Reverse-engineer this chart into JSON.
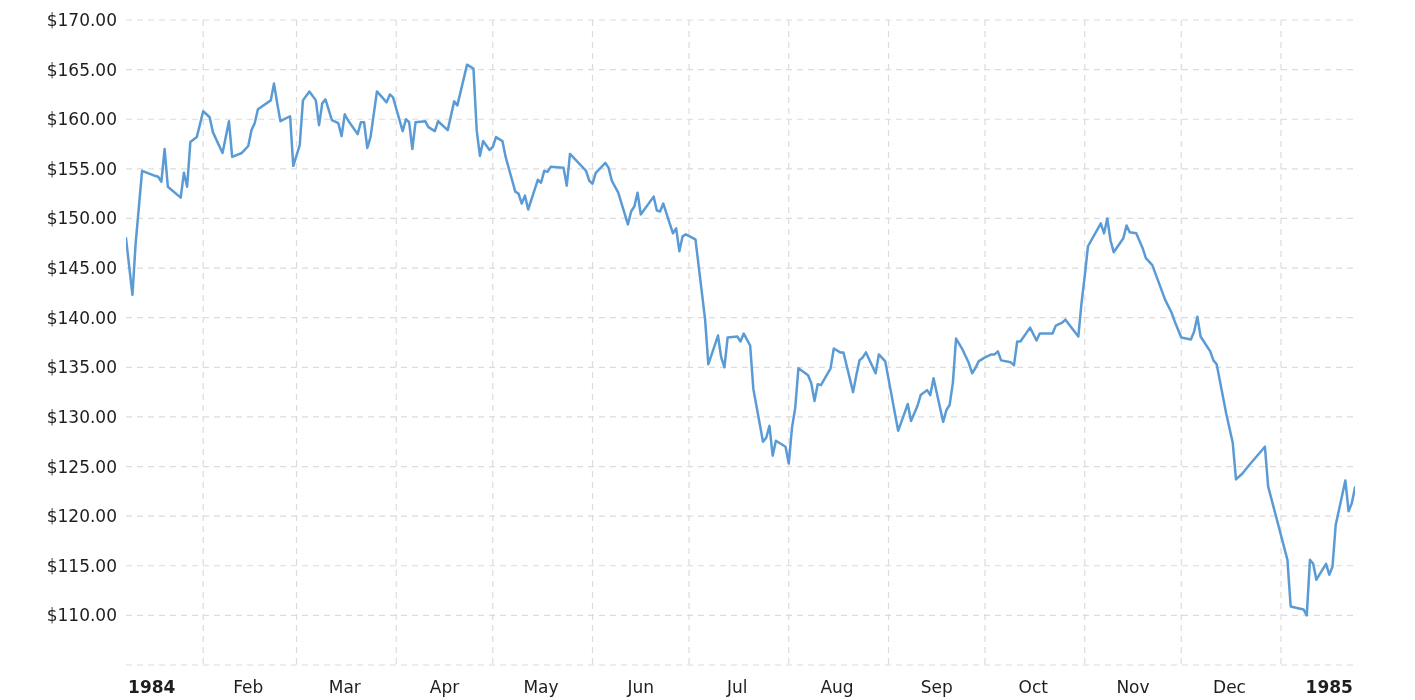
{
  "chart_data": {
    "type": "line",
    "color": "#5b9bd5",
    "x": [
      "1984-01-08",
      "1984-01-10",
      "1984-01-11",
      "1984-01-13",
      "1984-01-17",
      "1984-01-18",
      "1984-01-19",
      "1984-01-20",
      "1984-01-21",
      "1984-01-25",
      "1984-01-26",
      "1984-01-27",
      "1984-01-28",
      "1984-01-30",
      "1984-02-01",
      "1984-02-03",
      "1984-02-04",
      "1984-02-07",
      "1984-02-09",
      "1984-02-10",
      "1984-02-13",
      "1984-02-15",
      "1984-02-16",
      "1984-02-17",
      "1984-02-18",
      "1984-02-22",
      "1984-02-23",
      "1984-02-24",
      "1984-02-25",
      "1984-02-28",
      "1984-02-29",
      "1984-03-02",
      "1984-03-03",
      "1984-03-05",
      "1984-03-07",
      "1984-03-08",
      "1984-03-09",
      "1984-03-10",
      "1984-03-12",
      "1984-03-14",
      "1984-03-15",
      "1984-03-16",
      "1984-03-17",
      "1984-03-20",
      "1984-03-21",
      "1984-03-22",
      "1984-03-23",
      "1984-03-24",
      "1984-03-26",
      "1984-03-29",
      "1984-03-30",
      "1984-03-31",
      "1984-04-03",
      "1984-04-04",
      "1984-04-05",
      "1984-04-06",
      "1984-04-07",
      "1984-04-10",
      "1984-04-11",
      "1984-04-13",
      "1984-04-14",
      "1984-04-17",
      "1984-04-19",
      "1984-04-20",
      "1984-04-23",
      "1984-04-25",
      "1984-04-26",
      "1984-04-27",
      "1984-04-28",
      "1984-04-30",
      "1984-05-01",
      "1984-05-02",
      "1984-05-04",
      "1984-05-05",
      "1984-05-08",
      "1984-05-09",
      "1984-05-10",
      "1984-05-11",
      "1984-05-12",
      "1984-05-15",
      "1984-05-16",
      "1984-05-17",
      "1984-05-18",
      "1984-05-19",
      "1984-05-23",
      "1984-05-24",
      "1984-05-25",
      "1984-05-30",
      "1984-05-31",
      "1984-06-01",
      "1984-06-02",
      "1984-06-05",
      "1984-06-06",
      "1984-06-07",
      "1984-06-09",
      "1984-06-12",
      "1984-06-13",
      "1984-06-14",
      "1984-06-15",
      "1984-06-16",
      "1984-06-20",
      "1984-06-21",
      "1984-06-22",
      "1984-06-23",
      "1984-06-26",
      "1984-06-27",
      "1984-06-28",
      "1984-06-29",
      "1984-06-30",
      "1984-07-03",
      "1984-07-06",
      "1984-07-07",
      "1984-07-10",
      "1984-07-11",
      "1984-07-12",
      "1984-07-13",
      "1984-07-16",
      "1984-07-17",
      "1984-07-18",
      "1984-07-20",
      "1984-07-21",
      "1984-07-24",
      "1984-07-25",
      "1984-07-26",
      "1984-07-27",
      "1984-07-28",
      "1984-07-31",
      "1984-08-01",
      "1984-08-02",
      "1984-08-03",
      "1984-08-04",
      "1984-08-07",
      "1984-08-08",
      "1984-08-09",
      "1984-08-10",
      "1984-08-11",
      "1984-08-14",
      "1984-08-15",
      "1984-08-17",
      "1984-08-18",
      "1984-08-21",
      "1984-08-22",
      "1984-08-23",
      "1984-08-24",
      "1984-08-25",
      "1984-08-28",
      "1984-08-29",
      "1984-08-31",
      "1984-09-04",
      "1984-09-07",
      "1984-09-08",
      "1984-09-10",
      "1984-09-11",
      "1984-09-13",
      "1984-09-14",
      "1984-09-15",
      "1984-09-18",
      "1984-09-19",
      "1984-09-20",
      "1984-09-21",
      "1984-09-22",
      "1984-09-24",
      "1984-09-26",
      "1984-09-27",
      "1984-09-28",
      "1984-09-29",
      "1984-10-01",
      "1984-10-03",
      "1984-10-04",
      "1984-10-05",
      "1984-10-06",
      "1984-10-09",
      "1984-10-10",
      "1984-10-11",
      "1984-10-12",
      "1984-10-15",
      "1984-10-17",
      "1984-10-18",
      "1984-10-22",
      "1984-10-23",
      "1984-10-25",
      "1984-10-26",
      "1984-10-30",
      "1984-10-31",
      "1984-11-01",
      "1984-11-02",
      "1984-11-06",
      "1984-11-07",
      "1984-11-08",
      "1984-11-09",
      "1984-11-10",
      "1984-11-13",
      "1984-11-14",
      "1984-11-15",
      "1984-11-17",
      "1984-11-19",
      "1984-11-20",
      "1984-11-22",
      "1984-11-26",
      "1984-11-28",
      "1984-11-29",
      "1984-12-01",
      "1984-12-04",
      "1984-12-05",
      "1984-12-06",
      "1984-12-07",
      "1984-12-10",
      "1984-12-11",
      "1984-12-12",
      "1984-12-15",
      "1984-12-17",
      "1984-12-18",
      "1984-12-20",
      "1984-12-22",
      "1984-12-27",
      "1984-12-28",
      "1985-01-03",
      "1985-01-04",
      "1985-01-08",
      "1985-01-09",
      "1985-01-10",
      "1985-01-11",
      "1985-01-12",
      "1985-01-15",
      "1985-01-16",
      "1985-01-17",
      "1985-01-18",
      "1985-01-21",
      "1985-01-22",
      "1985-01-23",
      "1985-01-24"
    ],
    "values": [
      148.0,
      142.3,
      147.5,
      154.8,
      154.3,
      154.2,
      153.7,
      157.0,
      153.2,
      152.1,
      154.6,
      153.2,
      157.7,
      158.2,
      160.8,
      160.2,
      158.7,
      156.6,
      159.8,
      156.2,
      156.6,
      157.3,
      158.9,
      159.6,
      161.0,
      161.9,
      163.6,
      161.6,
      159.8,
      160.3,
      155.3,
      157.4,
      161.9,
      162.8,
      161.9,
      159.4,
      161.6,
      162.0,
      159.9,
      159.6,
      158.3,
      160.5,
      159.9,
      158.5,
      159.7,
      159.7,
      157.1,
      158.2,
      162.8,
      161.7,
      162.5,
      162.2,
      158.8,
      160.0,
      159.7,
      157.0,
      159.7,
      159.8,
      159.2,
      158.8,
      159.8,
      158.9,
      161.8,
      161.4,
      165.5,
      165.1,
      158.9,
      156.3,
      157.8,
      156.9,
      157.2,
      158.2,
      157.8,
      156.2,
      152.7,
      152.5,
      151.5,
      152.3,
      150.9,
      153.9,
      153.6,
      154.8,
      154.7,
      155.2,
      155.1,
      153.3,
      156.5,
      154.8,
      153.8,
      153.5,
      154.6,
      155.6,
      155.1,
      153.8,
      152.6,
      149.4,
      150.7,
      151.2,
      152.6,
      150.4,
      152.2,
      150.8,
      150.7,
      151.5,
      148.5,
      149.0,
      146.7,
      148.2,
      148.4,
      147.9,
      139.8,
      135.3,
      138.2,
      136.0,
      135.0,
      138.0,
      138.1,
      137.6,
      138.4,
      137.2,
      132.8,
      127.5,
      127.9,
      129.1,
      126.1,
      127.6,
      127.0,
      125.3,
      128.9,
      130.9,
      134.9,
      134.2,
      133.4,
      131.6,
      133.3,
      133.2,
      134.9,
      136.9,
      136.5,
      136.5,
      132.5,
      134.2,
      135.7,
      136.0,
      136.5,
      134.4,
      136.3,
      135.6,
      128.6,
      131.3,
      129.6,
      131.1,
      132.2,
      132.7,
      132.2,
      133.9,
      129.5,
      130.7,
      131.2,
      133.4,
      137.9,
      136.8,
      135.4,
      134.4,
      134.9,
      135.6,
      136.0,
      136.3,
      136.3,
      136.6,
      135.7,
      135.5,
      135.2,
      137.6,
      137.6,
      139.0,
      137.7,
      138.4,
      138.4,
      139.2,
      139.5,
      139.8,
      138.1,
      141.5,
      144.2,
      147.2,
      149.5,
      148.5,
      150.0,
      147.8,
      146.6,
      148.0,
      149.3,
      148.6,
      148.5,
      147.0,
      146.0,
      145.3,
      141.8,
      140.5,
      139.6,
      138.0,
      137.8,
      138.6,
      140.1,
      138.1,
      136.6,
      135.7,
      135.3,
      130.3,
      127.4,
      123.7,
      124.3,
      125.1,
      127.0,
      123.0,
      115.6,
      110.9,
      110.6,
      110.0,
      115.6,
      115.2,
      113.6,
      115.2,
      114.1,
      114.9,
      119.1,
      123.6,
      120.5,
      121.3,
      122.9
    ],
    "xlim": [
      "1984-01-08",
      "1985-01-24"
    ],
    "xticks": [
      {
        "value": "1984-01-16",
        "label": "1984"
      },
      {
        "value": "1984-02-01",
        "label": null
      },
      {
        "value": "1984-02-15",
        "label": "Feb"
      },
      {
        "value": "1984-03-01",
        "label": null
      },
      {
        "value": "1984-03-16",
        "label": "Mar"
      },
      {
        "value": "1984-04-01",
        "label": null
      },
      {
        "value": "1984-04-16",
        "label": "Apr"
      },
      {
        "value": "1984-05-01",
        "label": null
      },
      {
        "value": "1984-05-16",
        "label": "May"
      },
      {
        "value": "1984-06-01",
        "label": null
      },
      {
        "value": "1984-06-16",
        "label": "Jun"
      },
      {
        "value": "1984-07-01",
        "label": null
      },
      {
        "value": "1984-07-16",
        "label": "Jul"
      },
      {
        "value": "1984-08-01",
        "label": null
      },
      {
        "value": "1984-08-16",
        "label": "Aug"
      },
      {
        "value": "1984-09-01",
        "label": null
      },
      {
        "value": "1984-09-16",
        "label": "Sep"
      },
      {
        "value": "1984-10-01",
        "label": null
      },
      {
        "value": "1984-10-16",
        "label": "Oct"
      },
      {
        "value": "1984-11-01",
        "label": null
      },
      {
        "value": "1984-11-16",
        "label": "Nov"
      },
      {
        "value": "1984-12-01",
        "label": null
      },
      {
        "value": "1984-12-16",
        "label": "Dec"
      },
      {
        "value": "1985-01-01",
        "label": null
      },
      {
        "value": "1985-01-16",
        "label": "1985"
      }
    ],
    "ylim": [
      105,
      170
    ],
    "yticks": [
      {
        "value": 105,
        "label": null
      },
      {
        "value": 110,
        "label": "$110.00"
      },
      {
        "value": 115,
        "label": "$115.00"
      },
      {
        "value": 120,
        "label": "$120.00"
      },
      {
        "value": 125,
        "label": "$125.00"
      },
      {
        "value": 130,
        "label": "$130.00"
      },
      {
        "value": 135,
        "label": "$135.00"
      },
      {
        "value": 140,
        "label": "$140.00"
      },
      {
        "value": 145,
        "label": "$145.00"
      },
      {
        "value": 150,
        "label": "$150.00"
      },
      {
        "value": 155,
        "label": "$155.00"
      },
      {
        "value": 160,
        "label": "$160.00"
      },
      {
        "value": 165,
        "label": "$165.00"
      },
      {
        "value": 170,
        "label": "$170.00"
      }
    ],
    "grid": true
  }
}
